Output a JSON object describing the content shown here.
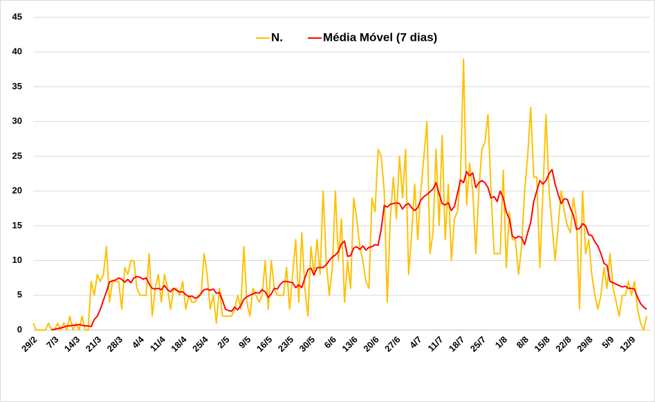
{
  "chart_data": {
    "type": "line",
    "categories": [
      "29/2",
      null,
      null,
      null,
      null,
      null,
      null,
      "7/3",
      null,
      null,
      null,
      null,
      null,
      null,
      "14/3",
      null,
      null,
      null,
      null,
      null,
      null,
      "21/3",
      null,
      null,
      null,
      null,
      null,
      null,
      "28/3",
      null,
      null,
      null,
      null,
      null,
      null,
      "4/4",
      null,
      null,
      null,
      null,
      null,
      null,
      "11/4",
      null,
      null,
      null,
      null,
      null,
      null,
      "18/4",
      null,
      null,
      null,
      null,
      null,
      null,
      "25/4",
      null,
      null,
      null,
      null,
      null,
      null,
      "2/5",
      null,
      null,
      null,
      null,
      null,
      null,
      "9/5",
      null,
      null,
      null,
      null,
      null,
      null,
      "16/5",
      null,
      null,
      null,
      null,
      null,
      null,
      "23/5",
      null,
      null,
      null,
      null,
      null,
      null,
      "30/5",
      null,
      null,
      null,
      null,
      null,
      null,
      "6/6",
      null,
      null,
      null,
      null,
      null,
      null,
      "13/6",
      null,
      null,
      null,
      null,
      null,
      null,
      "20/6",
      null,
      null,
      null,
      null,
      null,
      null,
      "27/6",
      null,
      null,
      null,
      null,
      null,
      null,
      "4/7",
      null,
      null,
      null,
      null,
      null,
      null,
      "11/7",
      null,
      null,
      null,
      null,
      null,
      null,
      "18/7",
      null,
      null,
      null,
      null,
      null,
      null,
      "25/7",
      null,
      null,
      null,
      null,
      null,
      null,
      "1/8",
      null,
      null,
      null,
      null,
      null,
      null,
      "8/8",
      null,
      null,
      null,
      null,
      null,
      null,
      "15/8",
      null,
      null,
      null,
      null,
      null,
      null,
      "22/8",
      null,
      null,
      null,
      null,
      null,
      null,
      "29/8",
      null,
      null,
      null,
      null,
      null,
      null,
      "5/9",
      null,
      null,
      null,
      null,
      null,
      null,
      "12/9",
      null,
      null,
      null,
      null,
      null
    ],
    "series": [
      {
        "name": "N.",
        "color": "#ffc000",
        "values": [
          1,
          0,
          0,
          0,
          0,
          1,
          0,
          0,
          1,
          0,
          1,
          0,
          2,
          0,
          1,
          0,
          2,
          0,
          0,
          7,
          5,
          8,
          7,
          8,
          12,
          4,
          7,
          7,
          7,
          3,
          9,
          8,
          10,
          10,
          6,
          5,
          5,
          5,
          11,
          2,
          6,
          8,
          4,
          8,
          6,
          3,
          6,
          6,
          5,
          7,
          3,
          5,
          4,
          4,
          5,
          5,
          11,
          8,
          3,
          5,
          1,
          6,
          2,
          2,
          2,
          2,
          3,
          5,
          3,
          12,
          4,
          2,
          6,
          5,
          4,
          5,
          10,
          3,
          10,
          6,
          5,
          5,
          5,
          9,
          3,
          8,
          13,
          4,
          14,
          6,
          2,
          12,
          8,
          13,
          8,
          20,
          10,
          5,
          9,
          20,
          10,
          16,
          4,
          10,
          6,
          19,
          16,
          12,
          10,
          7,
          6,
          19,
          17,
          26,
          25,
          20,
          4,
          16,
          22,
          16,
          25,
          19,
          26,
          8,
          14,
          21,
          13,
          20,
          25,
          30,
          11,
          14,
          26,
          15,
          28,
          13,
          21,
          10,
          16,
          17,
          22,
          39,
          18,
          24,
          20,
          11,
          20,
          26,
          27,
          31,
          20,
          11,
          11,
          11,
          23,
          9,
          17,
          13,
          13,
          8,
          12,
          20,
          25,
          32,
          22,
          22,
          9,
          20,
          31,
          20,
          15,
          10,
          15,
          20,
          17,
          15,
          14,
          19,
          16,
          3,
          20,
          11,
          13,
          8,
          5,
          3,
          5,
          9,
          6,
          11,
          6,
          4,
          2,
          5,
          5,
          7,
          5,
          7,
          3,
          1,
          0,
          2
        ]
      },
      {
        "name": "Média Móvel (7 dias)",
        "color": "#ff0000",
        "values": [
          null,
          null,
          null,
          null,
          null,
          null,
          0.1,
          0.1,
          0.2,
          0.3,
          0.4,
          0.6,
          0.6,
          0.7,
          0.7,
          0.8,
          0.7,
          0.6,
          0.6,
          0.5,
          1.5,
          2.0,
          3.0,
          4.3,
          5.5,
          6.9,
          7.1,
          7.2,
          7.5,
          7.3,
          6.9,
          7.3,
          6.8,
          7.5,
          7.7,
          7.6,
          7.3,
          7.5,
          6.6,
          6.0,
          5.9,
          6.0,
          5.8,
          6.4,
          5.8,
          5.5,
          6.0,
          5.7,
          5.5,
          5.5,
          5.1,
          4.8,
          4.9,
          4.6,
          4.7,
          5.3,
          5.8,
          5.9,
          5.7,
          5.9,
          5.3,
          5.4,
          4.3,
          3.0,
          2.8,
          2.7,
          3.3,
          2.9,
          3.5,
          4.4,
          4.8,
          5.0,
          5.2,
          5.4,
          5.3,
          5.8,
          5.5,
          4.7,
          5.2,
          6.0,
          5.9,
          6.6,
          7.0,
          7.0,
          6.9,
          6.8,
          6.1,
          6.5,
          6.1,
          7.5,
          8.7,
          8.9,
          7.9,
          9.0,
          9.0,
          9.0,
          9.4,
          10.0,
          10.5,
          10.8,
          11.3,
          12.4,
          12.8,
          10.6,
          10.7,
          11.8,
          12.0,
          11.6,
          12.1,
          11.5,
          11.9,
          12.0,
          12.3,
          12.2,
          14.5,
          17.9,
          17.7,
          18.1,
          18.2,
          18.3,
          18.2,
          17.4,
          18.0,
          18.2,
          17.6,
          17.2,
          17.6,
          18.7,
          19.2,
          19.5,
          19.9,
          20.3,
          21.2,
          19.6,
          18.2,
          18.0,
          18.3,
          17.2,
          17.8,
          19.6,
          21.6,
          21.2,
          22.8,
          22.2,
          22.6,
          20.5,
          21.2,
          21.5,
          21.2,
          20.5,
          19.0,
          19.2,
          18.5,
          20.0,
          19.0,
          17.0,
          16.0,
          13.5,
          13.2,
          13.5,
          13.3,
          12.3,
          14.0,
          15.5,
          18.5,
          20.0,
          21.5,
          21.0,
          21.5,
          22.5,
          23.1,
          21.0,
          19.5,
          18.2,
          18.9,
          18.8,
          17.5,
          16.5,
          14.5,
          14.6,
          15.3,
          15.0,
          13.7,
          13.6,
          12.7,
          12.1,
          11.0,
          9.6,
          9.3,
          7.0,
          6.8,
          6.6,
          6.4,
          6.2,
          6.3,
          6.0,
          6.0,
          5.9,
          4.7,
          3.8,
          3.3,
          3.0
        ]
      }
    ],
    "ylim": [
      0,
      45
    ],
    "yticks": [
      0,
      5,
      10,
      15,
      20,
      25,
      30,
      35,
      40,
      45
    ],
    "grid": true,
    "legend": "top"
  }
}
